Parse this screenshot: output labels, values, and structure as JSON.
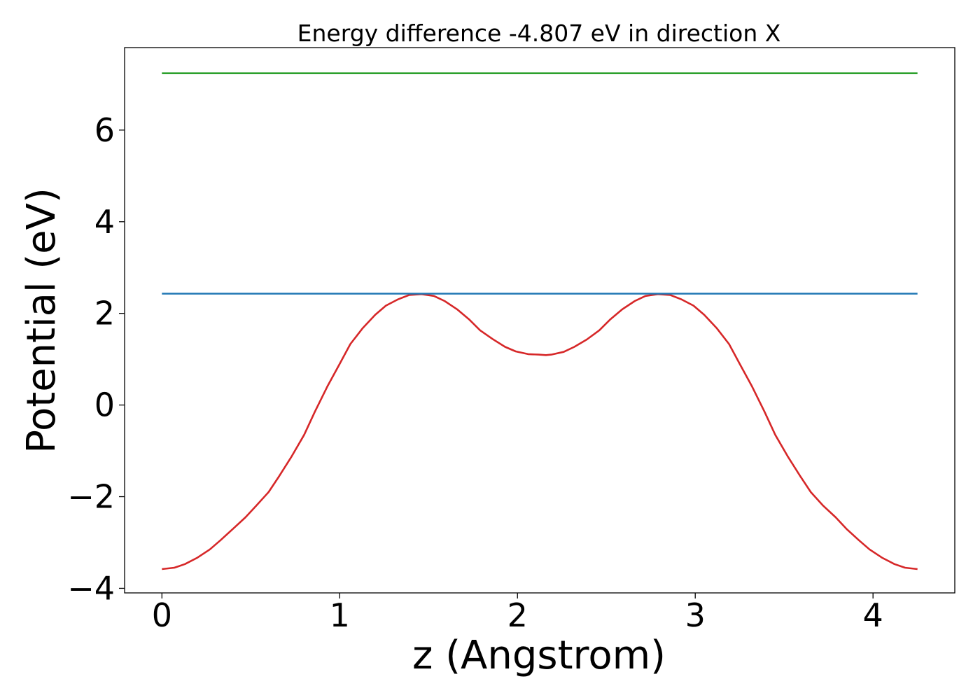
{
  "chart_data": {
    "type": "line",
    "title": "Energy difference -4.807 eV in direction X",
    "xlabel": "z (Angstrom)",
    "ylabel": "Potential (eV)",
    "xlim": [
      -0.21,
      4.46
    ],
    "ylim": [
      -4.1,
      7.8
    ],
    "grid": false,
    "xticks": [
      {
        "value": 0,
        "label": "0"
      },
      {
        "value": 1,
        "label": "1"
      },
      {
        "value": 2,
        "label": "2"
      },
      {
        "value": 3,
        "label": "3"
      },
      {
        "value": 4,
        "label": "4"
      }
    ],
    "yticks": [
      {
        "value": -4,
        "label": "−4"
      },
      {
        "value": -2,
        "label": "−2"
      },
      {
        "value": 0,
        "label": "0"
      },
      {
        "value": 2,
        "label": "2"
      },
      {
        "value": 4,
        "label": "4"
      },
      {
        "value": 6,
        "label": "6"
      }
    ],
    "series": [
      {
        "color": "#d62728",
        "x": [
          0.0,
          0.07,
          0.13,
          0.2,
          0.27,
          0.33,
          0.4,
          0.47,
          0.53,
          0.6,
          0.66,
          0.73,
          0.8,
          0.86,
          0.93,
          1.0,
          1.06,
          1.13,
          1.2,
          1.26,
          1.33,
          1.39,
          1.46,
          1.53,
          1.59,
          1.66,
          1.73,
          1.79,
          1.86,
          1.93,
          1.99,
          2.06,
          2.12,
          2.16,
          2.19,
          2.26,
          2.32,
          2.39,
          2.46,
          2.52,
          2.59,
          2.66,
          2.72,
          2.79,
          2.86,
          2.92,
          2.99,
          3.05,
          3.12,
          3.19,
          3.25,
          3.32,
          3.39,
          3.45,
          3.52,
          3.59,
          3.65,
          3.72,
          3.79,
          3.85,
          3.92,
          3.98,
          4.05,
          4.12,
          4.18,
          4.25
        ],
        "y": [
          -3.58,
          -3.55,
          -3.47,
          -3.33,
          -3.15,
          -2.95,
          -2.7,
          -2.45,
          -2.2,
          -1.9,
          -1.55,
          -1.12,
          -0.65,
          -0.15,
          0.4,
          0.9,
          1.33,
          1.68,
          1.97,
          2.17,
          2.31,
          2.4,
          2.42,
          2.38,
          2.27,
          2.09,
          1.86,
          1.63,
          1.44,
          1.27,
          1.17,
          1.11,
          1.1,
          1.09,
          1.1,
          1.16,
          1.27,
          1.43,
          1.63,
          1.86,
          2.09,
          2.27,
          2.38,
          2.42,
          2.4,
          2.31,
          2.17,
          1.97,
          1.68,
          1.33,
          0.9,
          0.4,
          -0.15,
          -0.65,
          -1.12,
          -1.55,
          -1.9,
          -2.2,
          -2.45,
          -2.7,
          -2.95,
          -3.15,
          -3.33,
          -3.47,
          -3.55,
          -3.58
        ]
      },
      {
        "color": "#1f77b4",
        "x": [
          0.0,
          4.25
        ],
        "y": [
          2.43,
          2.43
        ]
      },
      {
        "color": "#2ca02c",
        "x": [
          0.0,
          4.25
        ],
        "y": [
          7.24,
          7.24
        ]
      }
    ]
  }
}
